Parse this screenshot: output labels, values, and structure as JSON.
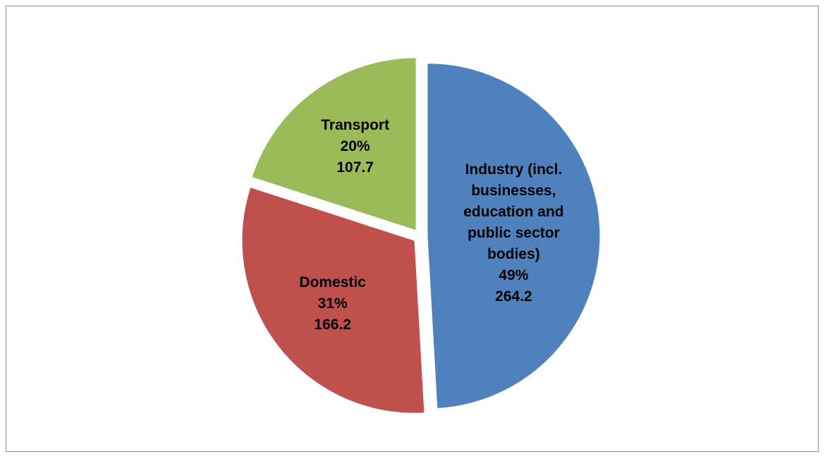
{
  "chart_data": {
    "type": "pie",
    "categories": [
      "Industry (incl. businesses, education and public sector bodies)",
      "Domestic",
      "Transport"
    ],
    "values": [
      264.2,
      166.2,
      107.7
    ],
    "percentages": [
      49,
      31,
      20
    ],
    "percentage_labels": [
      "49%",
      "31%",
      "20%"
    ],
    "colors": [
      "#4f81bd",
      "#c0504d",
      "#9bbb59"
    ]
  }
}
